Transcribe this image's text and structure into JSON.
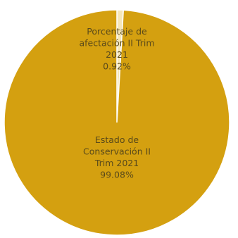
{
  "chart_data": {
    "type": "pie",
    "title": "",
    "slices": [
      {
        "label_lines": [
          "Estado de",
          "Conservación II",
          "Trim 2021"
        ],
        "value_text": "99.08%",
        "value": 99.08,
        "color": "#d4a010"
      },
      {
        "label_lines": [
          "Porcentaje de",
          "afectación II Trim",
          "2021"
        ],
        "value_text": "0.92%",
        "value": 0.92,
        "color": "#f5e6b8"
      }
    ],
    "legend": "none"
  },
  "colors": {
    "background": "#ffffff",
    "slice_border": "#ffffff",
    "label_text": "#5a4a1a",
    "cropped_header_text": "#4aa0d0"
  }
}
